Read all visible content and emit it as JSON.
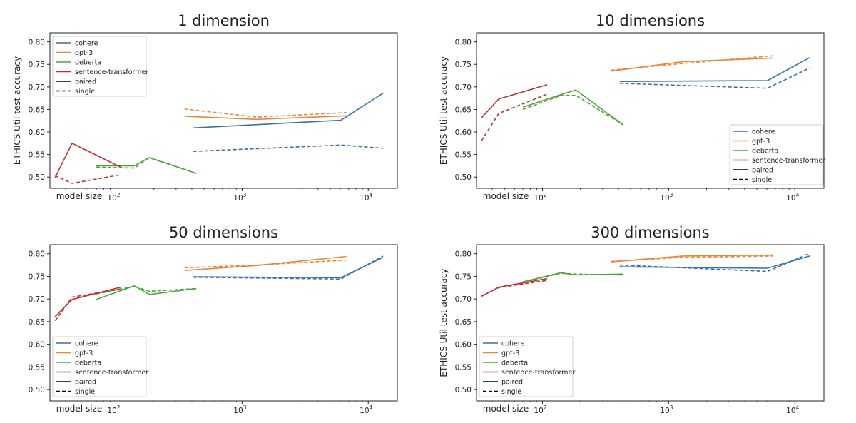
{
  "figure": {
    "shared": {
      "ylabel": "ETHICS Util test accuracy",
      "xlabel": "model size",
      "x_ticks": [
        {
          "value": 100,
          "label": "10",
          "exp": "2"
        },
        {
          "value": 1000,
          "label": "10",
          "exp": "3"
        },
        {
          "value": 10000,
          "label": "10",
          "exp": "4"
        }
      ],
      "y_ticks": [
        "0.50",
        "0.55",
        "0.60",
        "0.65",
        "0.70",
        "0.75",
        "0.80"
      ],
      "legend": [
        {
          "label": "cohere",
          "color": "#3a6fa8",
          "dash": false
        },
        {
          "label": "gpt-3",
          "color": "#e8873a",
          "dash": false
        },
        {
          "label": "deberta",
          "color": "#4fa33d",
          "dash": false
        },
        {
          "label": "sentence-transformer",
          "color": "#b8352f",
          "dash": false
        },
        {
          "label": "paired",
          "color": "#000000",
          "dash": false
        },
        {
          "label": "single",
          "color": "#000000",
          "dash": true
        }
      ]
    }
  },
  "chart_data": [
    {
      "type": "line",
      "title": "1 dimension",
      "xlabel": "model size",
      "ylabel": "ETHICS Util test accuracy",
      "xscale": "log",
      "xlim": [
        30,
        17000
      ],
      "ylim": [
        0.475,
        0.82
      ],
      "legend_position": "top-left",
      "series": [
        {
          "name": "cohere",
          "style": "paired",
          "color": "#3a6fa8",
          "x": [
            409,
            6067,
            13100
          ],
          "y": [
            0.609,
            0.626,
            0.686
          ]
        },
        {
          "name": "cohere",
          "style": "single",
          "color": "#3a6fa8",
          "x": [
            409,
            6067,
            13100
          ],
          "y": [
            0.557,
            0.571,
            0.564
          ]
        },
        {
          "name": "gpt-3",
          "style": "paired",
          "color": "#e8873a",
          "x": [
            350,
            1300,
            6700
          ],
          "y": [
            0.635,
            0.628,
            0.636
          ]
        },
        {
          "name": "gpt-3",
          "style": "single",
          "color": "#e8873a",
          "x": [
            350,
            1300,
            6700
          ],
          "y": [
            0.651,
            0.633,
            0.643
          ]
        },
        {
          "name": "deberta",
          "style": "paired",
          "color": "#4fa33d",
          "x": [
            70,
            140,
            184,
            435
          ],
          "y": [
            0.525,
            0.525,
            0.543,
            0.508
          ]
        },
        {
          "name": "deberta",
          "style": "single",
          "color": "#4fa33d",
          "x": [
            70,
            140,
            184,
            435
          ],
          "y": [
            0.522,
            0.52,
            0.543,
            0.508
          ]
        },
        {
          "name": "sentence-transformer",
          "style": "paired",
          "color": "#b8352f",
          "x": [
            33,
            45,
            109
          ],
          "y": [
            0.499,
            0.575,
            0.522
          ]
        },
        {
          "name": "sentence-transformer",
          "style": "single",
          "color": "#b8352f",
          "x": [
            33,
            45,
            109
          ],
          "y": [
            0.503,
            0.486,
            0.505
          ]
        }
      ]
    },
    {
      "type": "line",
      "title": "10 dimensions",
      "xlabel": "model size",
      "ylabel": "ETHICS Util test accuracy",
      "xscale": "log",
      "xlim": [
        30,
        17000
      ],
      "ylim": [
        0.475,
        0.82
      ],
      "legend_position": "bottom-right",
      "series": [
        {
          "name": "cohere",
          "style": "paired",
          "color": "#3a6fa8",
          "x": [
            409,
            6067,
            13100
          ],
          "y": [
            0.712,
            0.714,
            0.765
          ]
        },
        {
          "name": "cohere",
          "style": "single",
          "color": "#3a6fa8",
          "x": [
            409,
            6067,
            13100
          ],
          "y": [
            0.708,
            0.697,
            0.742
          ]
        },
        {
          "name": "gpt-3",
          "style": "paired",
          "color": "#e8873a",
          "x": [
            350,
            1300,
            6700
          ],
          "y": [
            0.735,
            0.756,
            0.764
          ]
        },
        {
          "name": "gpt-3",
          "style": "single",
          "color": "#e8873a",
          "x": [
            350,
            1300,
            6700
          ],
          "y": [
            0.737,
            0.752,
            0.769
          ]
        },
        {
          "name": "deberta",
          "style": "paired",
          "color": "#4fa33d",
          "x": [
            70,
            140,
            184,
            435
          ],
          "y": [
            0.655,
            0.683,
            0.693,
            0.616
          ]
        },
        {
          "name": "deberta",
          "style": "single",
          "color": "#4fa33d",
          "x": [
            70,
            140,
            184,
            435
          ],
          "y": [
            0.65,
            0.681,
            0.681,
            0.616
          ]
        },
        {
          "name": "sentence-transformer",
          "style": "paired",
          "color": "#b8352f",
          "x": [
            33,
            45,
            109
          ],
          "y": [
            0.632,
            0.673,
            0.705
          ]
        },
        {
          "name": "sentence-transformer",
          "style": "single",
          "color": "#b8352f",
          "x": [
            33,
            45,
            109
          ],
          "y": [
            0.581,
            0.641,
            0.684
          ]
        }
      ]
    },
    {
      "type": "line",
      "title": "50 dimensions",
      "xlabel": "model size",
      "ylabel": "",
      "xscale": "log",
      "xlim": [
        30,
        17000
      ],
      "ylim": [
        0.475,
        0.82
      ],
      "legend_position": "bottom-left",
      "series": [
        {
          "name": "cohere",
          "style": "paired",
          "color": "#3a6fa8",
          "x": [
            409,
            6067,
            13100
          ],
          "y": [
            0.749,
            0.747,
            0.792
          ]
        },
        {
          "name": "cohere",
          "style": "single",
          "color": "#3a6fa8",
          "x": [
            409,
            6067,
            13100
          ],
          "y": [
            0.748,
            0.744,
            0.795
          ]
        },
        {
          "name": "gpt-3",
          "style": "paired",
          "color": "#e8873a",
          "x": [
            350,
            1300,
            6700
          ],
          "y": [
            0.763,
            0.774,
            0.794
          ]
        },
        {
          "name": "gpt-3",
          "style": "single",
          "color": "#e8873a",
          "x": [
            350,
            1300,
            6700
          ],
          "y": [
            0.769,
            0.775,
            0.786
          ]
        },
        {
          "name": "deberta",
          "style": "paired",
          "color": "#4fa33d",
          "x": [
            70,
            140,
            184,
            435
          ],
          "y": [
            0.699,
            0.729,
            0.71,
            0.723
          ]
        },
        {
          "name": "deberta",
          "style": "single",
          "color": "#4fa33d",
          "x": [
            70,
            140,
            184,
            435
          ],
          "y": [
            0.711,
            0.728,
            0.717,
            0.723
          ]
        },
        {
          "name": "sentence-transformer",
          "style": "paired",
          "color": "#b8352f",
          "x": [
            33,
            45,
            109
          ],
          "y": [
            0.661,
            0.699,
            0.726
          ]
        },
        {
          "name": "sentence-transformer",
          "style": "single",
          "color": "#b8352f",
          "x": [
            33,
            45,
            109
          ],
          "y": [
            0.652,
            0.704,
            0.722
          ]
        }
      ]
    },
    {
      "type": "line",
      "title": "300 dimensions",
      "xlabel": "model size",
      "ylabel": "ETHICS Util test accuracy",
      "xscale": "log",
      "xlim": [
        30,
        17000
      ],
      "ylim": [
        0.475,
        0.82
      ],
      "legend_position": "bottom-left",
      "series": [
        {
          "name": "cohere",
          "style": "paired",
          "color": "#3a6fa8",
          "x": [
            409,
            6067,
            13100
          ],
          "y": [
            0.771,
            0.768,
            0.795
          ]
        },
        {
          "name": "cohere",
          "style": "single",
          "color": "#3a6fa8",
          "x": [
            409,
            6067,
            13100
          ],
          "y": [
            0.775,
            0.761,
            0.801
          ]
        },
        {
          "name": "gpt-3",
          "style": "paired",
          "color": "#e8873a",
          "x": [
            350,
            1300,
            6700
          ],
          "y": [
            0.782,
            0.795,
            0.797
          ]
        },
        {
          "name": "gpt-3",
          "style": "single",
          "color": "#e8873a",
          "x": [
            350,
            1300,
            6700
          ],
          "y": [
            0.783,
            0.792,
            0.795
          ]
        },
        {
          "name": "deberta",
          "style": "paired",
          "color": "#4fa33d",
          "x": [
            70,
            140,
            184,
            435
          ],
          "y": [
            0.738,
            0.758,
            0.753,
            0.755
          ]
        },
        {
          "name": "deberta",
          "style": "single",
          "color": "#4fa33d",
          "x": [
            70,
            140,
            184,
            435
          ],
          "y": [
            0.737,
            0.757,
            0.755,
            0.753
          ]
        },
        {
          "name": "sentence-transformer",
          "style": "paired",
          "color": "#b8352f",
          "x": [
            33,
            45,
            109
          ],
          "y": [
            0.706,
            0.726,
            0.745
          ]
        },
        {
          "name": "sentence-transformer",
          "style": "single",
          "color": "#b8352f",
          "x": [
            33,
            45,
            109
          ],
          "y": [
            0.707,
            0.725,
            0.741
          ]
        }
      ]
    }
  ]
}
